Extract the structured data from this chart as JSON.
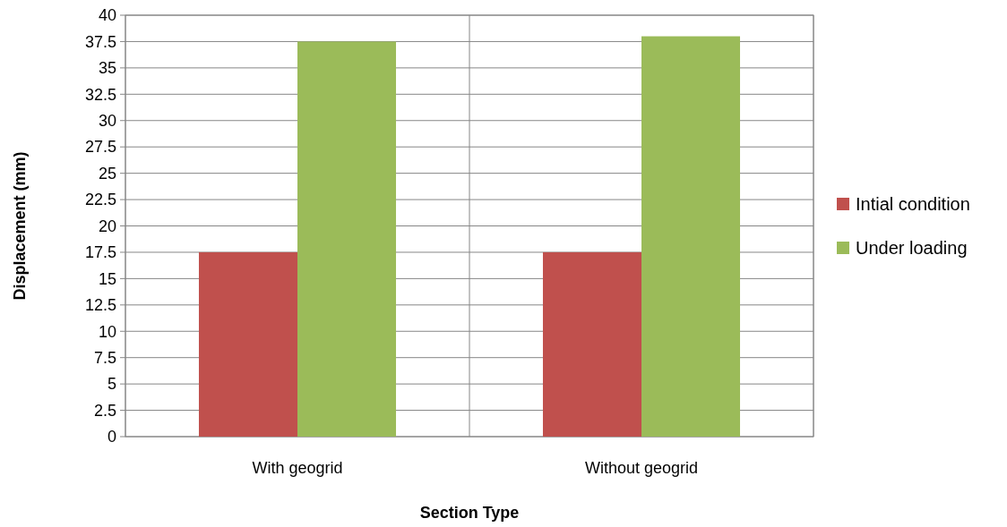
{
  "chart_data": {
    "type": "bar",
    "xlabel": "Section Type",
    "ylabel": "Displacement (mm)",
    "categories": [
      "With geogrid",
      "Without geogrid"
    ],
    "series": [
      {
        "name": "Intial condition",
        "color": "#c0504d",
        "values": [
          17.5,
          17.5
        ]
      },
      {
        "name": "Under loading",
        "color": "#9bbb59",
        "values": [
          37.5,
          38
        ]
      }
    ],
    "ylim": [
      0,
      40
    ],
    "yticks": [
      0,
      2.5,
      5,
      7.5,
      10,
      12.5,
      15,
      17.5,
      20,
      22.5,
      25,
      27.5,
      30,
      32.5,
      35,
      37.5,
      40
    ],
    "grid": true,
    "legend": "right"
  }
}
